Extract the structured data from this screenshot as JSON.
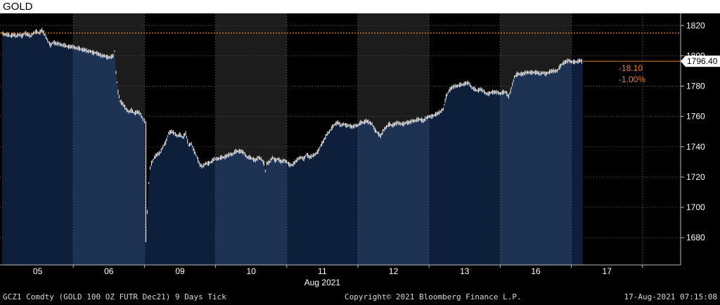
{
  "page": {
    "title": "GOLD"
  },
  "chart_data": {
    "type": "line",
    "series_style": "tick bars with filled area",
    "xlabel": "Aug 2021",
    "x_ticks": [
      "05",
      "06",
      "09",
      "10",
      "11",
      "12",
      "13",
      "16",
      "17"
    ],
    "ylim": [
      1662,
      1828
    ],
    "y_ticks": [
      1680,
      1700,
      1720,
      1740,
      1760,
      1780,
      1800,
      1820
    ],
    "reference_line": {
      "value": 1815,
      "style": "dotted",
      "color": "#e8822a"
    },
    "last_price": {
      "value": 1796.4,
      "label": "1796.40",
      "change": "-18.10",
      "change_pct": "-1.00%"
    },
    "session_shading": "alternating days",
    "series": [
      {
        "values": [
          [
            0.0,
            1815
          ],
          [
            0.04,
            1814
          ],
          [
            0.08,
            1814
          ],
          [
            0.12,
            1813
          ],
          [
            0.16,
            1814
          ],
          [
            0.2,
            1813
          ],
          [
            0.24,
            1814
          ],
          [
            0.28,
            1813
          ],
          [
            0.32,
            1815
          ],
          [
            0.36,
            1814
          ],
          [
            0.4,
            1813
          ],
          [
            0.44,
            1815
          ],
          [
            0.48,
            1816
          ],
          [
            0.52,
            1815
          ],
          [
            0.56,
            1817
          ],
          [
            0.6,
            1814
          ],
          [
            0.64,
            1810
          ],
          [
            0.68,
            1807
          ],
          [
            0.72,
            1809
          ],
          [
            0.76,
            1808
          ],
          [
            0.8,
            1808
          ],
          [
            0.84,
            1807
          ],
          [
            0.88,
            1807
          ],
          [
            0.92,
            1806
          ],
          [
            0.96,
            1806
          ],
          [
            1.0,
            1806
          ],
          [
            1.04,
            1805
          ],
          [
            1.08,
            1805
          ],
          [
            1.12,
            1804
          ],
          [
            1.16,
            1804
          ],
          [
            1.2,
            1803
          ],
          [
            1.24,
            1803
          ],
          [
            1.28,
            1802
          ],
          [
            1.32,
            1802
          ],
          [
            1.36,
            1801
          ],
          [
            1.4,
            1800
          ],
          [
            1.44,
            1800
          ],
          [
            1.48,
            1799
          ],
          [
            1.52,
            1799
          ],
          [
            1.56,
            1800
          ],
          [
            1.58,
            1803
          ],
          [
            1.6,
            1789
          ],
          [
            1.63,
            1776
          ],
          [
            1.66,
            1770
          ],
          [
            1.7,
            1768
          ],
          [
            1.74,
            1765
          ],
          [
            1.78,
            1763
          ],
          [
            1.82,
            1764
          ],
          [
            1.86,
            1762
          ],
          [
            1.9,
            1763
          ],
          [
            1.94,
            1762
          ],
          [
            1.98,
            1758
          ],
          [
            2.0,
            1757
          ],
          [
            2.02,
            1680
          ],
          [
            2.04,
            1697
          ],
          [
            2.06,
            1716
          ],
          [
            2.08,
            1726
          ],
          [
            2.1,
            1729
          ],
          [
            2.14,
            1733
          ],
          [
            2.18,
            1735
          ],
          [
            2.22,
            1736
          ],
          [
            2.26,
            1740
          ],
          [
            2.3,
            1743
          ],
          [
            2.34,
            1749
          ],
          [
            2.38,
            1750
          ],
          [
            2.42,
            1749
          ],
          [
            2.46,
            1747
          ],
          [
            2.5,
            1748
          ],
          [
            2.54,
            1746
          ],
          [
            2.58,
            1749
          ],
          [
            2.62,
            1741
          ],
          [
            2.66,
            1742
          ],
          [
            2.7,
            1737
          ],
          [
            2.74,
            1733
          ],
          [
            2.78,
            1728
          ],
          [
            2.82,
            1727
          ],
          [
            2.86,
            1729
          ],
          [
            2.9,
            1729
          ],
          [
            2.94,
            1730
          ],
          [
            2.98,
            1732
          ],
          [
            3.0,
            1732
          ],
          [
            3.04,
            1732
          ],
          [
            3.08,
            1733
          ],
          [
            3.12,
            1733
          ],
          [
            3.16,
            1734
          ],
          [
            3.2,
            1735
          ],
          [
            3.24,
            1735
          ],
          [
            3.28,
            1737
          ],
          [
            3.32,
            1737
          ],
          [
            3.36,
            1737
          ],
          [
            3.4,
            1736
          ],
          [
            3.44,
            1733
          ],
          [
            3.48,
            1733
          ],
          [
            3.52,
            1732
          ],
          [
            3.56,
            1731
          ],
          [
            3.6,
            1733
          ],
          [
            3.64,
            1732
          ],
          [
            3.68,
            1729
          ],
          [
            3.7,
            1724
          ],
          [
            3.72,
            1729
          ],
          [
            3.76,
            1730
          ],
          [
            3.8,
            1733
          ],
          [
            3.84,
            1731
          ],
          [
            3.88,
            1732
          ],
          [
            3.92,
            1730
          ],
          [
            3.96,
            1731
          ],
          [
            4.0,
            1730
          ],
          [
            4.04,
            1728
          ],
          [
            4.08,
            1728
          ],
          [
            4.12,
            1730
          ],
          [
            4.16,
            1732
          ],
          [
            4.2,
            1733
          ],
          [
            4.24,
            1732
          ],
          [
            4.28,
            1735
          ],
          [
            4.32,
            1733
          ],
          [
            4.36,
            1734
          ],
          [
            4.4,
            1735
          ],
          [
            4.44,
            1737
          ],
          [
            4.48,
            1741
          ],
          [
            4.52,
            1744
          ],
          [
            4.56,
            1748
          ],
          [
            4.6,
            1750
          ],
          [
            4.64,
            1753
          ],
          [
            4.68,
            1755
          ],
          [
            4.72,
            1756
          ],
          [
            4.76,
            1754
          ],
          [
            4.8,
            1755
          ],
          [
            4.84,
            1754
          ],
          [
            4.88,
            1754
          ],
          [
            4.92,
            1753
          ],
          [
            4.96,
            1754
          ],
          [
            5.0,
            1754
          ],
          [
            5.04,
            1756
          ],
          [
            5.08,
            1756
          ],
          [
            5.12,
            1757
          ],
          [
            5.16,
            1756
          ],
          [
            5.2,
            1755
          ],
          [
            5.24,
            1751
          ],
          [
            5.28,
            1749
          ],
          [
            5.32,
            1747
          ],
          [
            5.36,
            1751
          ],
          [
            5.4,
            1753
          ],
          [
            5.44,
            1755
          ],
          [
            5.48,
            1754
          ],
          [
            5.52,
            1755
          ],
          [
            5.56,
            1756
          ],
          [
            5.6,
            1755
          ],
          [
            5.64,
            1755
          ],
          [
            5.68,
            1756
          ],
          [
            5.72,
            1756
          ],
          [
            5.76,
            1757
          ],
          [
            5.8,
            1757
          ],
          [
            5.84,
            1758
          ],
          [
            5.88,
            1758
          ],
          [
            5.92,
            1757
          ],
          [
            5.96,
            1759
          ],
          [
            6.0,
            1760
          ],
          [
            6.04,
            1760
          ],
          [
            6.08,
            1761
          ],
          [
            6.12,
            1762
          ],
          [
            6.16,
            1763
          ],
          [
            6.2,
            1765
          ],
          [
            6.24,
            1773
          ],
          [
            6.28,
            1777
          ],
          [
            6.32,
            1779
          ],
          [
            6.36,
            1780
          ],
          [
            6.4,
            1780
          ],
          [
            6.44,
            1781
          ],
          [
            6.48,
            1781
          ],
          [
            6.52,
            1782
          ],
          [
            6.56,
            1782
          ],
          [
            6.6,
            1779
          ],
          [
            6.64,
            1778
          ],
          [
            6.68,
            1777
          ],
          [
            6.72,
            1778
          ],
          [
            6.76,
            1777
          ],
          [
            6.8,
            1775
          ],
          [
            6.84,
            1775
          ],
          [
            6.88,
            1776
          ],
          [
            6.92,
            1776
          ],
          [
            6.96,
            1776
          ],
          [
            7.0,
            1775
          ],
          [
            7.04,
            1776
          ],
          [
            7.08,
            1776
          ],
          [
            7.12,
            1773
          ],
          [
            7.16,
            1779
          ],
          [
            7.2,
            1786
          ],
          [
            7.24,
            1788
          ],
          [
            7.28,
            1788
          ],
          [
            7.32,
            1788
          ],
          [
            7.36,
            1789
          ],
          [
            7.4,
            1789
          ],
          [
            7.44,
            1789
          ],
          [
            7.48,
            1789
          ],
          [
            7.52,
            1789
          ],
          [
            7.56,
            1788
          ],
          [
            7.6,
            1789
          ],
          [
            7.64,
            1788
          ],
          [
            7.68,
            1789
          ],
          [
            7.72,
            1790
          ],
          [
            7.76,
            1790
          ],
          [
            7.8,
            1790
          ],
          [
            7.84,
            1793
          ],
          [
            7.88,
            1795
          ],
          [
            7.92,
            1796
          ],
          [
            7.96,
            1797
          ],
          [
            8.0,
            1796
          ],
          [
            8.04,
            1796
          ],
          [
            8.08,
            1796
          ],
          [
            8.12,
            1797
          ],
          [
            8.16,
            1796
          ]
        ]
      }
    ]
  },
  "colors": {
    "background": "#000000",
    "band_alt": "#1c1c1c",
    "area_dark": "#0d1f3a",
    "area_light": "#1e3253",
    "line": "#f0f0f0",
    "accent": "#e8822a",
    "axis_text": "#ffffff",
    "footer_text": "#d8d8d8"
  },
  "footer": {
    "security": "GCZ1 Comdty (GOLD 100 OZ FUTR  Dec21) 9 Days  Tick",
    "copyright": "Copyright© 2021 Bloomberg Finance L.P.",
    "timestamp": "17-Aug-2021 07:15:08"
  }
}
